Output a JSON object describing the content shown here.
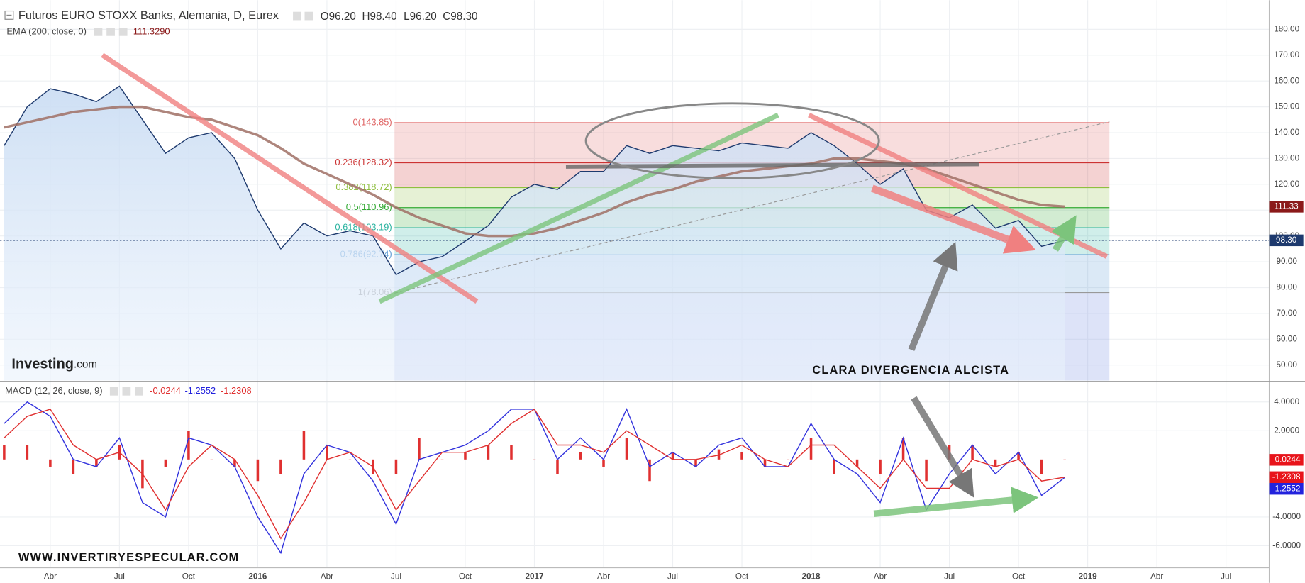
{
  "header": {
    "title": "Futuros EURO STOXX Banks, Alemania, D, Eurex",
    "open": "O96.20",
    "high": "H98.40",
    "low": "L96.20",
    "close": "C98.30",
    "ema_label": "EMA (200, close, 0)",
    "ema_value": "111.3290",
    "macd_label": "MACD (12, 26, close, 9)",
    "macd_values": [
      "-0.0244",
      "-1.2552",
      "-1.2308"
    ]
  },
  "annotations": {
    "divergence": "CLARA DIVERGENCIA ALCISTA",
    "website": "WWW.INVERTIRYESPECULAR.COM",
    "logo": "Investing",
    "logo_suffix": ".com"
  },
  "chart_data": [
    {
      "type": "line",
      "categories": [
        null,
        null,
        "Abr",
        null,
        null,
        "Jul",
        null,
        null,
        "Oct",
        null,
        null,
        "2016",
        null,
        null,
        "Abr",
        null,
        null,
        "Jul",
        null,
        null,
        "Oct",
        null,
        null,
        "2017",
        null,
        null,
        "Abr",
        null,
        null,
        "Jul",
        null,
        null,
        "Oct",
        null,
        null,
        "2018",
        null,
        null,
        "Abr",
        null,
        null,
        "Jul",
        null,
        null,
        "Oct",
        null,
        null,
        "2019",
        null,
        null,
        "Abr",
        null,
        null,
        "Jul",
        null
      ],
      "series": [
        {
          "color": "#1e3a6e",
          "values": [
            135,
            150,
            157,
            155,
            152,
            158,
            145,
            132,
            138,
            140,
            130,
            110,
            95,
            105,
            100,
            102,
            100,
            85,
            90,
            92,
            98,
            104,
            115,
            120,
            118,
            125,
            125,
            135,
            132,
            135,
            134,
            133,
            136,
            135,
            134,
            140,
            135,
            128,
            120,
            126,
            110,
            107,
            112,
            103,
            106,
            96,
            98.3,
            null,
            null,
            null,
            null,
            null,
            null,
            null,
            null
          ]
        },
        {
          "color": "#a07065",
          "values": [
            142,
            144,
            146,
            148,
            149,
            150,
            150,
            148,
            146,
            145,
            142,
            139,
            134,
            128,
            124,
            120,
            116,
            111,
            107,
            104,
            101,
            100,
            100,
            101,
            103,
            106,
            109,
            113,
            116,
            118,
            121,
            123,
            125,
            126,
            127,
            128,
            130,
            130,
            129,
            128,
            126,
            123,
            120,
            117,
            114,
            112,
            111.33,
            null,
            null,
            null,
            null,
            null,
            null,
            null,
            null
          ]
        }
      ],
      "ylim": [
        44,
        190
      ],
      "yticks": [
        {
          "value": 50,
          "label": "50.00"
        },
        {
          "value": 60,
          "label": "60.00"
        },
        {
          "value": 70,
          "label": "70.00"
        },
        {
          "value": 80,
          "label": "80.00"
        },
        {
          "value": 90,
          "label": "90.00"
        },
        {
          "value": 100,
          "label": "100.00"
        },
        {
          "value": 110,
          "label": "110.00"
        },
        {
          "value": 120,
          "label": "120.00"
        },
        {
          "value": 130,
          "label": "130.00"
        },
        {
          "value": 140,
          "label": "140.00"
        },
        {
          "value": 150,
          "label": "150.00"
        },
        {
          "value": 160,
          "label": "160.00"
        },
        {
          "value": 170,
          "label": "170.00"
        },
        {
          "value": 180,
          "label": "180.00"
        }
      ],
      "grid": true,
      "fib_levels": [
        {
          "label": "0(143.85)",
          "value": 143.85,
          "color": "#e06666"
        },
        {
          "label": "0.236(128.32)",
          "value": 128.32,
          "color": "#cc3333"
        },
        {
          "label": "0.382(118.72)",
          "value": 118.72,
          "color": "#8fbf3f"
        },
        {
          "label": "0.5(110.96)",
          "value": 110.96,
          "color": "#33aa33"
        },
        {
          "label": "0.618(103.19)",
          "value": 103.19,
          "color": "#2bb3a0"
        },
        {
          "label": "0.786(92.74)",
          "value": 92.74,
          "color": "#5b9bd5"
        },
        {
          "label": "1(78.06)",
          "value": 78.06,
          "color": "#999999"
        }
      ],
      "price_tags": [
        {
          "value": 111.33,
          "label": "111.33",
          "color": "#8b1a1a"
        },
        {
          "value": 98.3,
          "label": "98.30",
          "color": "#1e3a6e"
        }
      ]
    },
    {
      "type": "line",
      "series": [
        {
          "color": "#3333dd",
          "values": [
            2.5,
            4,
            3,
            0,
            -0.5,
            1.5,
            -3,
            -4,
            1.5,
            1,
            -0.5,
            -4,
            -6.5,
            -1,
            1,
            0.5,
            -1.5,
            -4.5,
            0,
            0.5,
            1,
            2,
            3.5,
            3.5,
            0,
            1.5,
            0,
            3.5,
            -0.5,
            0.5,
            -0.5,
            1,
            1.5,
            -0.5,
            -0.5,
            2.5,
            0,
            -1,
            -3,
            1.5,
            -3.5,
            -1,
            1,
            -1,
            0.5,
            -2.5,
            -1.2552,
            null,
            null,
            null,
            null,
            null,
            null,
            null,
            null
          ]
        },
        {
          "color": "#e03030",
          "values": [
            1.5,
            3,
            3.5,
            1,
            0,
            0.5,
            -1,
            -3.5,
            -0.5,
            1,
            0,
            -2.5,
            -5.5,
            -3,
            0,
            0.5,
            -0.5,
            -3.5,
            -1.5,
            0.5,
            0.5,
            1,
            2.5,
            3.5,
            1,
            1,
            0.5,
            2,
            1,
            0,
            0,
            0.3,
            1,
            0,
            -0.5,
            1,
            1,
            -0.5,
            -2,
            0,
            -2,
            -2,
            0,
            -0.5,
            0,
            -1.5,
            -1.2308,
            null,
            null,
            null,
            null,
            null,
            null,
            null,
            null
          ]
        }
      ],
      "histogram": {
        "color": "#e03030",
        "values": [
          1,
          1,
          -0.5,
          -1,
          -0.5,
          1,
          -2,
          -0.5,
          2,
          0,
          -0.5,
          -1.5,
          -1,
          2,
          1,
          0,
          -1,
          -1,
          1.5,
          0,
          0.5,
          1,
          1,
          0,
          -1,
          0.5,
          -0.5,
          1.5,
          -1.5,
          0.5,
          -0.5,
          0.7,
          0.5,
          -0.5,
          0,
          1.5,
          -1,
          -0.5,
          -1,
          1.5,
          -1.5,
          1,
          1,
          -0.5,
          0.5,
          -1,
          -0.0244,
          null,
          null,
          null,
          null,
          null,
          null,
          null,
          null
        ]
      },
      "ylim": [
        -8,
        5.2
      ],
      "yticks": [
        {
          "value": 4,
          "label": "4.0000"
        },
        {
          "value": 2,
          "label": "2.0000"
        },
        {
          "value": -4,
          "label": "-4.0000"
        },
        {
          "value": -6,
          "label": "-6.0000"
        }
      ],
      "grid": true,
      "value_tags": [
        {
          "value": -0.0244,
          "label": "-0.0244",
          "color": "#e8141b"
        },
        {
          "value": -1.2308,
          "label": "-1.2308",
          "color": "#e8141b"
        },
        {
          "value": -1.2552,
          "label": "-1.2552",
          "color": "#2222dd"
        }
      ]
    }
  ]
}
